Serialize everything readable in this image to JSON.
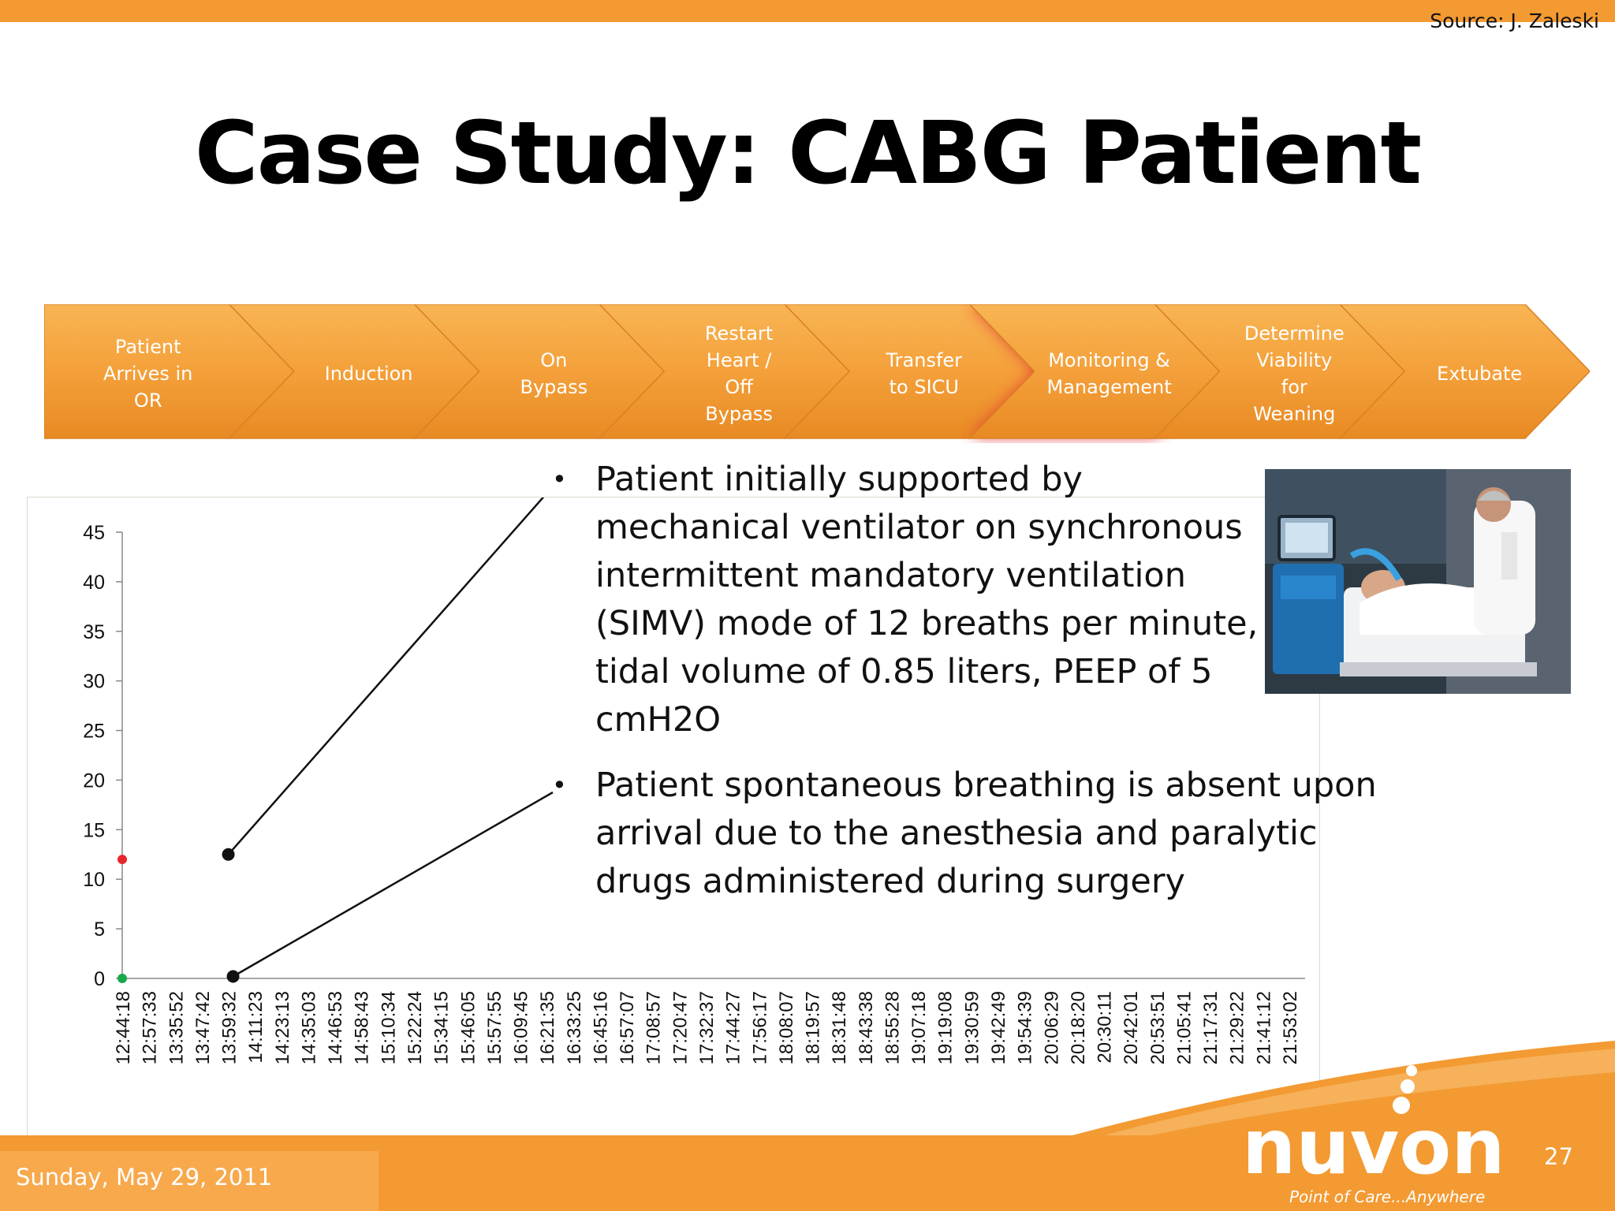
{
  "header": {
    "source": "Source: J. Zaleski"
  },
  "slide": {
    "title": "Case Study: CABG Patient"
  },
  "process_steps": [
    {
      "lines": [
        "Patient",
        "Arrives in",
        "OR"
      ]
    },
    {
      "lines": [
        "Induction"
      ]
    },
    {
      "lines": [
        "On",
        "Bypass"
      ]
    },
    {
      "lines": [
        "Restart",
        "Heart /",
        "Off",
        "Bypass"
      ]
    },
    {
      "lines": [
        "Transfer",
        "to SICU"
      ]
    },
    {
      "lines": [
        "Monitoring &",
        "Management"
      ],
      "highlighted": true
    },
    {
      "lines": [
        "Determine",
        "Viability",
        "for",
        "Weaning"
      ]
    },
    {
      "lines": [
        "Extubate"
      ]
    }
  ],
  "bullets": [
    "Patient initially supported by mechanical ventilator on synchronous intermittent mandatory ventilation (SIMV) mode of 12 breaths per minute, tidal volume of 0.85 liters, PEEP of 5 cmH2O",
    "Patient spontaneous breathing is absent upon arrival due to the anesthesia and paralytic drugs administered during surgery"
  ],
  "chart_data": {
    "type": "scatter",
    "title": "",
    "xlabel": "",
    "ylabel": "",
    "ylim": [
      0,
      45
    ],
    "yticks": [
      0,
      5,
      10,
      15,
      20,
      25,
      30,
      35,
      40,
      45
    ],
    "categories": [
      "12:44:18",
      "12:57:33",
      "13:35:52",
      "13:47:42",
      "13:59:32",
      "14:11:23",
      "14:23:13",
      "14:35:03",
      "14:46:53",
      "14:58:43",
      "15:10:34",
      "15:22:24",
      "15:34:15",
      "15:46:05",
      "15:57:55",
      "16:09:45",
      "16:21:35",
      "16:33:25",
      "16:45:16",
      "16:57:07",
      "17:08:57",
      "17:20:47",
      "17:32:37",
      "17:44:27",
      "17:56:17",
      "18:08:07",
      "18:19:57",
      "18:31:48",
      "18:43:38",
      "18:55:28",
      "19:07:18",
      "19:19:08",
      "19:30:59",
      "19:42:49",
      "19:54:39",
      "20:06:29",
      "20:18:20",
      "20:30:11",
      "20:42:01",
      "20:53:51",
      "21:05:41",
      "21:17:31",
      "21:29:22",
      "21:41:12",
      "21:53:02"
    ],
    "series": [
      {
        "color": "#e8262a",
        "points": [
          {
            "x": "12:44:18",
            "y": 12
          }
        ]
      },
      {
        "color": "#1aa84a",
        "points": [
          {
            "x": "12:44:18",
            "y": 0
          }
        ]
      }
    ],
    "annotations": [
      {
        "x": "13:59:32",
        "y": 12.5,
        "target_bullet": 0
      },
      {
        "x": "13:59:32",
        "y": 0.2,
        "target_bullet": 1
      }
    ],
    "grid": false,
    "legend": "none"
  },
  "footer": {
    "date": "Sunday, May 29, 2011",
    "page": "27"
  },
  "logo": {
    "name": "nuvon",
    "tagline": "Point of Care...Anywhere",
    "color": "#ffffff"
  },
  "colors": {
    "accent": "#f39a32",
    "chevron": "#f4a63c",
    "highlight": "#e03030",
    "footer": "#f39a32"
  }
}
